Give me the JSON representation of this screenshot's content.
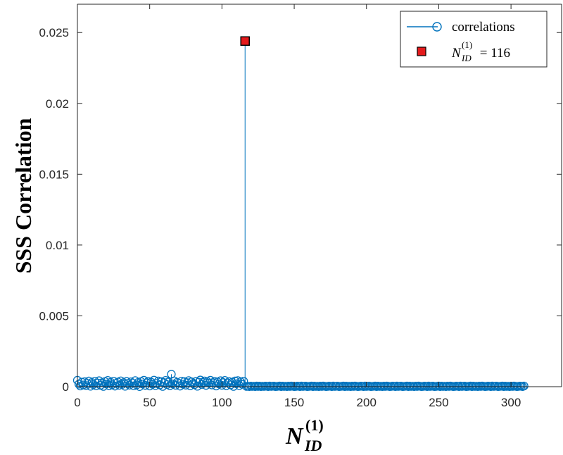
{
  "chart_data": {
    "type": "scatter",
    "title": "",
    "ylabel": "SSS Correlation",
    "xlabel": {
      "symbol": "N",
      "superscript": "(1)",
      "subscript": "ID"
    },
    "xlim": [
      0,
      335
    ],
    "ylim": [
      0,
      0.027
    ],
    "xticks": [
      0,
      50,
      100,
      150,
      200,
      250,
      300
    ],
    "xtick_labels": [
      "0",
      "50",
      "100",
      "150",
      "200",
      "250",
      "300"
    ],
    "yticks": [
      0,
      0.005,
      0.01,
      0.015,
      0.02,
      0.025
    ],
    "ytick_labels": [
      "0",
      "0.005",
      "0.01",
      "0.015",
      "0.02",
      "0.025"
    ],
    "grid": false,
    "legend_position": "top-right",
    "series": [
      {
        "name": "correlations",
        "style": "stem-circle",
        "color": "#0072BD",
        "x_start": 0,
        "values": [
          0.00045,
          0.00018,
          5e-05,
          0.00032,
          0.00012,
          0.00035,
          8e-05,
          0.00022,
          0.0004,
          3e-05,
          0.0003,
          0.00015,
          0.00038,
          6e-05,
          0.00025,
          0.00042,
          0.0001,
          0.00028,
          2e-05,
          0.00036,
          0.00019,
          0.00044,
          7e-05,
          0.00031,
          0.00014,
          0.00039,
          4e-05,
          0.00024,
          0.00033,
          0.0001,
          0.00041,
          0.00016,
          0.00029,
          3e-05,
          0.00037,
          0.00021,
          0.00011,
          0.00034,
          0.00026,
          6e-05,
          0.00043,
          0.00013,
          0.0003,
          1e-05,
          0.00036,
          0.00019,
          0.00045,
          9e-05,
          0.00027,
          0.00038,
          5e-05,
          0.00032,
          0.00017,
          0.00046,
          8e-05,
          0.00023,
          0.0004,
          0.00012,
          0.00035,
          2e-05,
          0.00029,
          0.00044,
          0.00015,
          0.00033,
          7e-05,
          0.00088,
          0.0002,
          0.00041,
          0.0001,
          0.00031,
          0.00025,
          4e-05,
          0.00039,
          0.00018,
          0.00036,
          0.00011,
          0.00028,
          0.00043,
          6e-05,
          0.00034,
          0.00022,
          0.00014,
          0.00037,
          3e-05,
          0.00032,
          0.00047,
          0.00016,
          0.0003,
          0.0004,
          9e-05,
          0.00035,
          0.00024,
          0.00045,
          0.00012,
          0.00027,
          0.00038,
          5e-05,
          0.00033,
          0.00019,
          0.00042,
          0.0001,
          0.00029,
          0.00044,
          7e-05,
          0.00026,
          0.00036,
          0.00013,
          0.00031,
          2e-05,
          0.0004,
          0.00021,
          0.00043,
          8e-05,
          0.00034,
          0.00017,
          0.00039,
          0.0244,
          2e-05,
          3e-05,
          1e-05,
          4e-05,
          2e-05,
          3e-05,
          1e-05,
          5e-05,
          2e-05,
          4e-05,
          1e-05,
          3e-05,
          2e-05,
          4e-05,
          3e-05,
          1e-05,
          5e-05,
          2e-05,
          3e-05,
          4e-05,
          1e-05,
          2e-05,
          3e-05,
          5e-05,
          1e-05,
          4e-05,
          2e-05,
          3e-05,
          1e-05,
          4e-05,
          2e-05,
          5e-05,
          3e-05,
          1e-05,
          2e-05,
          4e-05,
          3e-05,
          1e-05,
          5e-05,
          2e-05,
          3e-05,
          4e-05,
          1e-05,
          2e-05,
          3e-05,
          5e-05,
          1e-05,
          4e-05,
          2e-05,
          3e-05,
          1e-05,
          4e-05,
          2e-05,
          5e-05,
          3e-05,
          1e-05,
          2e-05,
          4e-05,
          3e-05,
          1e-05,
          5e-05,
          2e-05,
          3e-05,
          4e-05,
          1e-05,
          2e-05,
          3e-05,
          5e-05,
          1e-05,
          4e-05,
          2e-05,
          3e-05,
          1e-05,
          4e-05,
          2e-05,
          5e-05,
          3e-05,
          1e-05,
          2e-05,
          4e-05,
          3e-05,
          1e-05,
          5e-05,
          2e-05,
          3e-05,
          4e-05,
          1e-05,
          2e-05,
          3e-05,
          5e-05,
          1e-05,
          4e-05,
          2e-05,
          3e-05,
          1e-05,
          4e-05,
          2e-05,
          5e-05,
          3e-05,
          1e-05,
          2e-05,
          4e-05,
          3e-05,
          1e-05,
          5e-05,
          2e-05,
          3e-05,
          4e-05,
          1e-05,
          2e-05,
          3e-05,
          5e-05,
          1e-05,
          4e-05,
          2e-05,
          3e-05,
          1e-05,
          4e-05,
          2e-05,
          5e-05,
          3e-05,
          1e-05,
          2e-05,
          4e-05,
          3e-05,
          1e-05,
          5e-05,
          2e-05,
          3e-05,
          4e-05,
          1e-05,
          2e-05,
          3e-05,
          5e-05,
          1e-05,
          4e-05,
          2e-05,
          3e-05,
          1e-05,
          4e-05,
          2e-05,
          5e-05,
          3e-05,
          1e-05,
          2e-05,
          4e-05,
          3e-05,
          1e-05,
          5e-05,
          2e-05,
          3e-05,
          4e-05,
          1e-05,
          2e-05,
          3e-05,
          5e-05,
          1e-05,
          4e-05,
          2e-05,
          3e-05,
          1e-05,
          4e-05,
          2e-05,
          5e-05,
          3e-05,
          1e-05,
          2e-05,
          4e-05,
          3e-05,
          1e-05,
          5e-05,
          2e-05,
          3e-05,
          4e-05,
          1e-05,
          2e-05,
          3e-05,
          5e-05,
          1e-05,
          4e-05,
          2e-05,
          3e-05,
          1e-05,
          4e-05,
          2e-05,
          5e-05,
          3e-05,
          1e-05,
          2e-05,
          4e-05,
          3e-05,
          1e-05,
          5e-05
        ]
      },
      {
        "name": "N_ID^(1) = 116",
        "style": "square-marker",
        "color": "#E41A1C",
        "x": [
          116
        ],
        "values": [
          0.0244
        ]
      }
    ],
    "legend": [
      {
        "label": "correlations"
      },
      {
        "symbol": "N",
        "superscript": "(1)",
        "subscript": "ID",
        "equals": " = 116"
      }
    ]
  }
}
